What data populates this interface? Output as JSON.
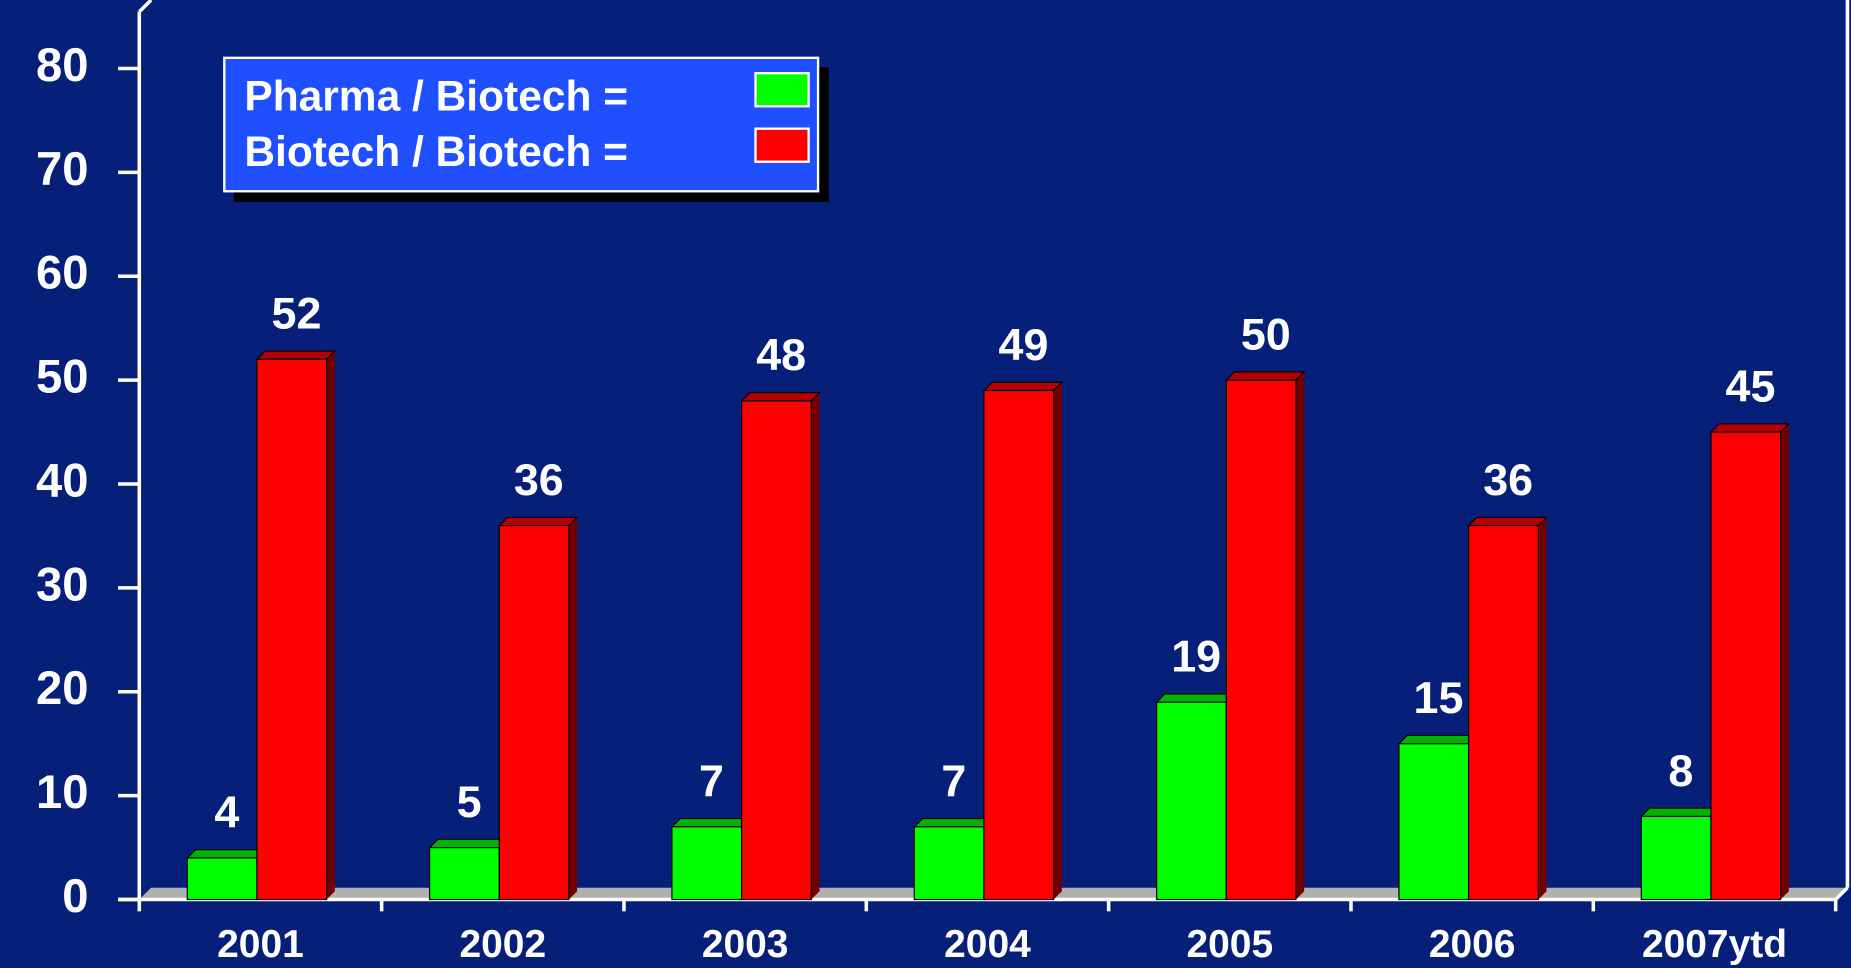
{
  "chart_data": {
    "type": "bar",
    "categories": [
      "2001",
      "2002",
      "2003",
      "2004",
      "2005",
      "2006",
      "2007ytd"
    ],
    "series": [
      {
        "name": "Pharma / Biotech =",
        "color": "#00ff00",
        "values": [
          4,
          5,
          7,
          7,
          19,
          15,
          8
        ]
      },
      {
        "name": "Biotech / Biotech =",
        "color": "#ff0000",
        "values": [
          52,
          36,
          48,
          49,
          50,
          36,
          45
        ]
      }
    ],
    "ylim": [
      0,
      80
    ],
    "yticks": [
      0,
      10,
      20,
      30,
      40,
      50,
      60,
      70,
      80
    ],
    "legend": "upper left"
  }
}
